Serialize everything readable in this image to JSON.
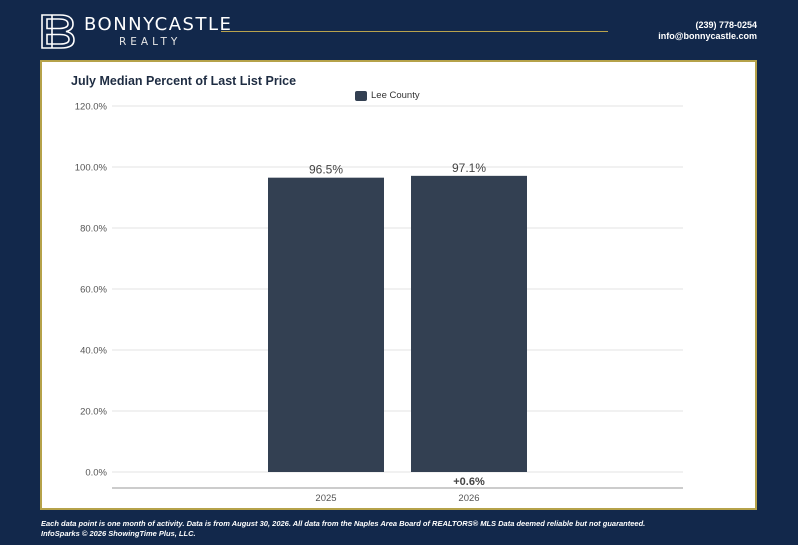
{
  "header": {
    "brand_name": "BONNYCASTLE",
    "brand_sub": "REALTY",
    "phone": "(239) 778-0254",
    "email": "info@bonnycastle.com"
  },
  "colors": {
    "background": "#12284b",
    "gold": "#b5a24a",
    "bar": "#334052"
  },
  "chart_data": {
    "type": "bar",
    "title": "July Median Percent of Last List Price",
    "categories": [
      "2025",
      "2026"
    ],
    "series": [
      {
        "name": "Lee County",
        "values": [
          96.5,
          97.1
        ]
      }
    ],
    "data_labels": [
      "96.5%",
      "97.1%"
    ],
    "y_ticks": [
      "0.0%",
      "20.0%",
      "40.0%",
      "60.0%",
      "80.0%",
      "100.0%",
      "120.0%"
    ],
    "ylim": [
      0,
      120
    ],
    "grid": true,
    "legend_position": "top-center",
    "change_label": "+0.6%",
    "xlabel": "",
    "ylabel": ""
  },
  "footer": {
    "line1": "Each data point is one month of activity. Data is from August 30, 2026. All data from the Naples Area Board of REALTORS® MLS  Data deemed reliable but not guaranteed.",
    "line2": "InfoSparks © 2026 ShowingTime Plus, LLC."
  }
}
